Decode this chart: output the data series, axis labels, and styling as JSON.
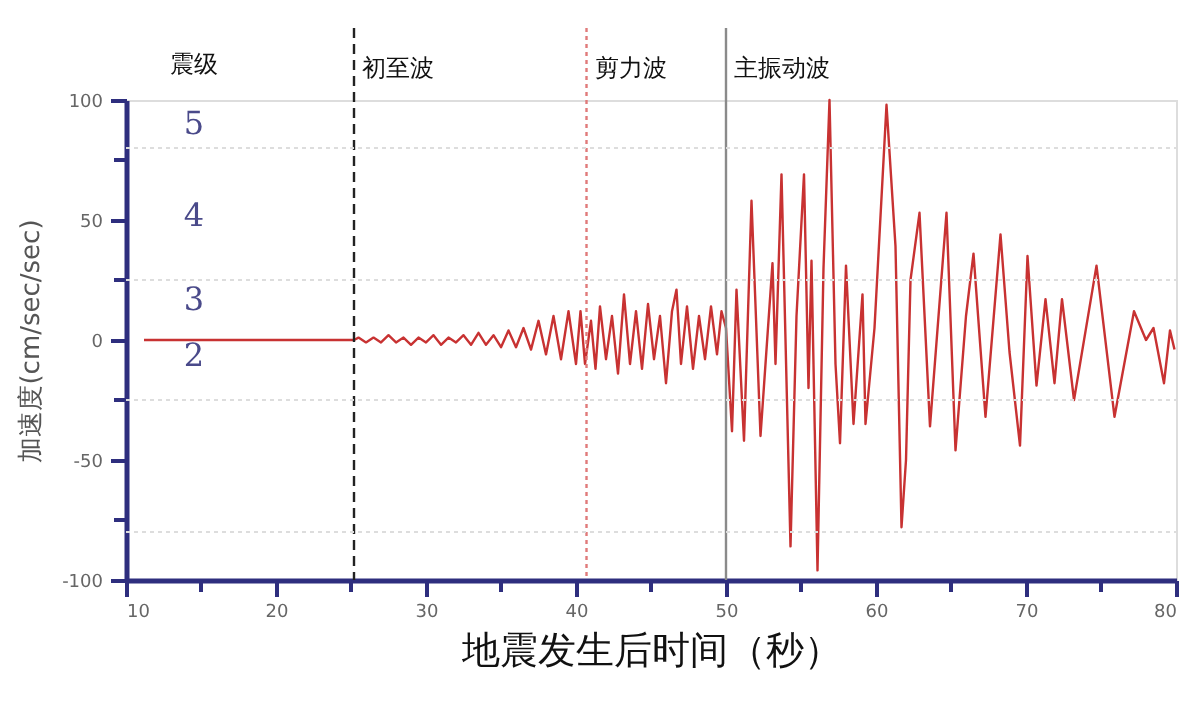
{
  "chart_data": {
    "type": "line",
    "xlabel": "地震发生后时间（秒）",
    "ylabel": "加速度(cm/sec/sec)",
    "x": [
      11.2,
      25.2,
      25.5,
      26,
      26.5,
      27,
      27.5,
      28,
      28.5,
      29,
      29.5,
      30,
      30.5,
      31,
      31.5,
      32,
      32.5,
      33,
      33.5,
      34,
      34.5,
      35,
      35.5,
      36,
      36.5,
      37,
      37.5,
      38,
      38.5,
      39,
      39.5,
      40,
      40.3,
      40.6,
      41,
      41.3,
      41.6,
      42,
      42.4,
      42.8,
      43.2,
      43.6,
      44,
      44.4,
      44.8,
      45.2,
      45.6,
      46,
      46.4,
      46.7,
      47,
      47.4,
      47.8,
      48.2,
      48.6,
      49,
      49.4,
      49.7,
      50.0,
      50.4,
      50.7,
      51.2,
      51.7,
      52.3,
      53.1,
      53.3,
      53.7,
      54.3,
      54.7,
      55.2,
      55.5,
      55.7,
      56.1,
      56.5,
      56.9,
      57.3,
      57.6,
      58.0,
      58.5,
      59.1,
      59.3,
      59.9,
      60.7,
      61.3,
      61.7,
      62.0,
      62.3,
      62.9,
      63.6,
      64.7,
      65.3,
      66.0,
      66.5,
      67.3,
      68.3,
      68.9,
      69.6,
      70.1,
      70.7,
      71.3,
      71.9,
      72.4,
      73.2,
      74.7,
      75.9,
      77.2,
      78.0,
      78.5,
      79.2,
      79.6,
      79.9
    ],
    "series": [
      {
        "color": "#c83232",
        "values": [
          0,
          0,
          1,
          -1,
          1,
          -1,
          2,
          -1,
          1,
          -2,
          1,
          -1,
          2,
          -2,
          1,
          -1,
          2,
          -2,
          3,
          -2,
          2,
          -3,
          4,
          -3,
          5,
          -4,
          8,
          -6,
          10,
          -8,
          12,
          -10,
          12,
          -10,
          8,
          -12,
          14,
          -8,
          10,
          -14,
          19,
          -10,
          12,
          -12,
          15,
          -8,
          10,
          -18,
          12,
          21,
          -10,
          14,
          -12,
          10,
          -8,
          14,
          -6,
          12,
          5,
          -38,
          21,
          -42,
          58,
          -40,
          32,
          -10,
          69,
          -86,
          10,
          69,
          -20,
          33,
          -96,
          30,
          100,
          -10,
          -43,
          31,
          -35,
          19,
          -35,
          5,
          98,
          39,
          -78,
          -50,
          25,
          53,
          -36,
          53,
          -46,
          10,
          36,
          -32,
          44,
          -5,
          -44,
          35,
          -19,
          17,
          -18,
          17,
          -25,
          31,
          -32,
          12,
          0,
          5,
          -18,
          4,
          -4
        ]
      }
    ],
    "xlim": [
      10,
      80
    ],
    "ylim": [
      -100,
      100
    ],
    "xticks": [
      10,
      {
        "value": 15,
        "label": null
      },
      20,
      {
        "value": 25,
        "label": null
      },
      30,
      {
        "value": 35,
        "label": null
      },
      40,
      {
        "value": 45,
        "label": null
      },
      50,
      {
        "value": 55,
        "label": null
      },
      60,
      {
        "value": 65,
        "label": null
      },
      70,
      {
        "value": 75,
        "label": null
      },
      80
    ],
    "yticks": [
      -100,
      {
        "value": -75,
        "label": null
      },
      -50,
      {
        "value": -25,
        "label": null
      },
      0,
      {
        "value": 25,
        "label": null
      },
      50,
      {
        "value": 75,
        "label": null
      },
      100
    ],
    "ref_lines": [
      {
        "axis": "x",
        "value": 25.2,
        "label": "初至波",
        "color": "#222222",
        "line_style": "dashed"
      },
      {
        "axis": "x",
        "value": 40.7,
        "label": "剪力波",
        "color": "#e07a7a",
        "line_style": "dotted"
      },
      {
        "axis": "x",
        "value": 50,
        "label": "主振动波",
        "color": "#8a8a8a",
        "line_style": "solid"
      },
      {
        "axis": "y",
        "value": 80,
        "color": "#dddddd",
        "line_style": "dotted"
      },
      {
        "axis": "y",
        "value": 25,
        "color": "#dddddd",
        "line_style": "dotted"
      },
      {
        "axis": "y",
        "value": -25,
        "color": "#dddddd",
        "line_style": "dotted"
      },
      {
        "axis": "y",
        "value": -80,
        "color": "#dddddd",
        "line_style": "dotted"
      }
    ],
    "annotations": [
      "震级",
      "5",
      "4",
      "3",
      "2"
    ],
    "grid": false,
    "marker": "none",
    "line_style": "solid"
  }
}
